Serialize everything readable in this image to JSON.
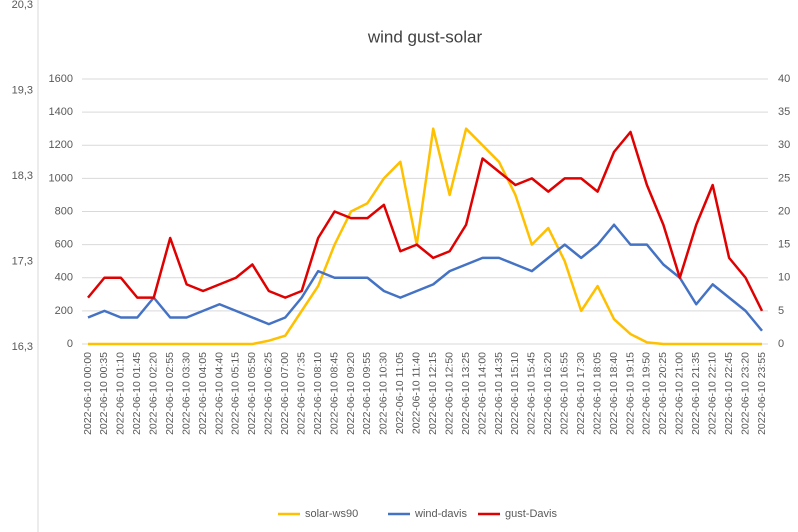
{
  "chart_data": [
    {
      "type": "line",
      "title": "wind gust-solar",
      "categories": [
        "2022-06-10 00:00",
        "2022-06-10 00:35",
        "2022-06-10 01:10",
        "2022-06-10 01:45",
        "2022-06-10 02:20",
        "2022-06-10 02:55",
        "2022-06-10 03:30",
        "2022-06-10 04:05",
        "2022-06-10 04:40",
        "2022-06-10 05:15",
        "2022-06-10 05:50",
        "2022-06-10 06:25",
        "2022-06-10 07:00",
        "2022-06-10 07:35",
        "2022-06-10 08:10",
        "2022-06-10 08:45",
        "2022-06-10 09:20",
        "2022-06-10 09:55",
        "2022-06-10 10:30",
        "2022-06-10 11:05",
        "2022-06-10 11:40",
        "2022-06-10 12:15",
        "2022-06-10 12:50",
        "2022-06-10 13:25",
        "2022-06-10 14:00",
        "2022-06-10 14:35",
        "2022-06-10 15:10",
        "2022-06-10 15:45",
        "2022-06-10 16:20",
        "2022-06-10 16:55",
        "2022-06-10 17:30",
        "2022-06-10 18:05",
        "2022-06-10 18:40",
        "2022-06-10 19:15",
        "2022-06-10 19:50",
        "2022-06-10 20:25",
        "2022-06-10 21:00",
        "2022-06-10 21:35",
        "2022-06-10 22:10",
        "2022-06-10 22:45",
        "2022-06-10 23:20",
        "2022-06-10 23:55"
      ],
      "series": [
        {
          "name": "solar-ws90",
          "color": "#ffc000",
          "axis": "y",
          "values": [
            0,
            0,
            0,
            0,
            0,
            0,
            0,
            0,
            0,
            0,
            0,
            20,
            50,
            200,
            350,
            600,
            800,
            850,
            1000,
            1100,
            600,
            1300,
            900,
            1300,
            1200,
            1100,
            900,
            600,
            700,
            500,
            200,
            350,
            150,
            60,
            10,
            0,
            0,
            0,
            0,
            0,
            0,
            0
          ]
        },
        {
          "name": "wind-davis",
          "color": "#4472c4",
          "axis": "y2",
          "values": [
            4,
            5,
            4,
            4,
            7,
            4,
            4,
            5,
            6,
            5,
            4,
            3,
            4,
            7,
            11,
            10,
            10,
            10,
            8,
            7,
            8,
            9,
            11,
            12,
            13,
            13,
            12,
            11,
            13,
            15,
            13,
            15,
            18,
            15,
            15,
            12,
            10,
            6,
            9,
            7,
            5,
            2
          ]
        },
        {
          "name": "gust-Davis",
          "color": "#e00000",
          "axis": "y2",
          "values": [
            7,
            10,
            10,
            7,
            7,
            16,
            9,
            8,
            9,
            10,
            12,
            8,
            7,
            8,
            16,
            20,
            19,
            19,
            21,
            14,
            15,
            13,
            14,
            18,
            28,
            26,
            24,
            25,
            23,
            25,
            25,
            23,
            29,
            32,
            24,
            18,
            10,
            18,
            24,
            13,
            10,
            5
          ]
        }
      ],
      "ylim": [
        0,
        1600
      ],
      "yticks": [
        0,
        200,
        400,
        600,
        800,
        1000,
        1200,
        1400,
        1600
      ],
      "y2lim": [
        0,
        40
      ],
      "y2ticks": [
        0,
        5,
        10,
        15,
        20,
        25,
        30,
        35,
        40
      ],
      "grid": true,
      "legend": "bottom"
    },
    {
      "type": "axis",
      "ylim": [
        16.3,
        20.3
      ],
      "yticks": [
        {
          "value": 20.3,
          "label": "20,3"
        },
        {
          "value": 19.3,
          "label": "19,3"
        },
        {
          "value": 18.3,
          "label": "18,3"
        },
        {
          "value": 17.3,
          "label": "17,3"
        },
        {
          "value": 16.3,
          "label": "16,3"
        }
      ]
    }
  ]
}
